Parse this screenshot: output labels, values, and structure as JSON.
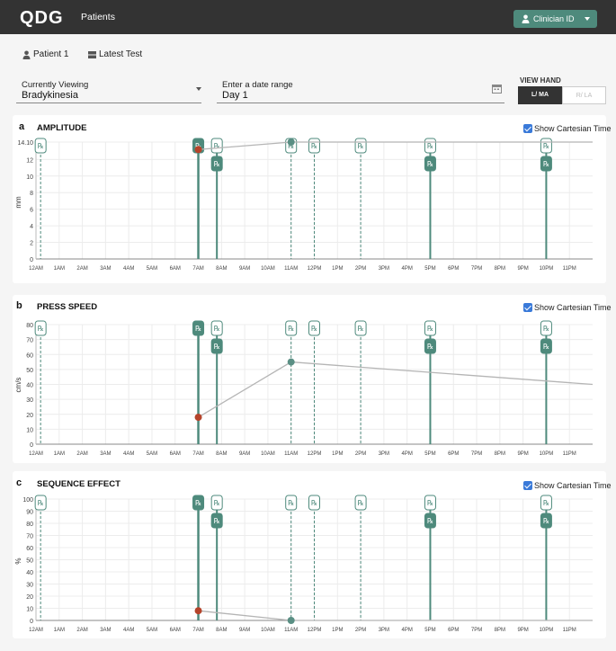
{
  "header": {
    "logo": "QDG",
    "title": "Patients",
    "clinician_label": "Clinician ID"
  },
  "subnav": {
    "patient": "Patient 1",
    "latest_test": "Latest Test"
  },
  "filters": {
    "viewing_label": "Currently Viewing",
    "viewing_value": "Bradykinesia",
    "date_label": "Enter a date range",
    "date_value": "Day 1",
    "view_hand_label": "VIEW HAND",
    "hand_left": "L/ MA",
    "hand_right": "R/ LA"
  },
  "colors": {
    "accent": "#4e8a7c",
    "dot_red": "#b5442b",
    "dot_teal": "#5a8f84",
    "line": "#b5b5b5"
  },
  "rx_symbol": "℞",
  "show_cartesian_label": "Show Cartesian Time",
  "chart_data": [
    {
      "type": "line",
      "letter": "a",
      "title": "AMPLITUDE",
      "ylabel": "mm",
      "ylim": [
        0,
        14.1
      ],
      "yticks": [
        "0",
        "2",
        "4",
        "6",
        "8",
        "10",
        "12",
        "14.10"
      ],
      "xticks": [
        "12AM",
        "1AM",
        "2AM",
        "3AM",
        "4AM",
        "5AM",
        "6AM",
        "7AM",
        "8AM",
        "9AM",
        "10AM",
        "11AM",
        "12PM",
        "1PM",
        "2PM",
        "3PM",
        "4PM",
        "5PM",
        "6PM",
        "7PM",
        "8PM",
        "9PM",
        "10PM",
        "11PM"
      ],
      "series": [
        {
          "points": [
            [
              7.0,
              13.2
            ],
            [
              11.0,
              14.1
            ],
            [
              24.0,
              14.1
            ]
          ]
        }
      ],
      "highlight_points": [
        {
          "x": 7.0,
          "y": 13.2,
          "color": "red"
        },
        {
          "x": 11.0,
          "y": 14.1,
          "color": "teal"
        }
      ],
      "medications": {
        "dashed": [
          0.2,
          11.0,
          12.0,
          14.0
        ],
        "solid_single": [
          7.8,
          17.0,
          22.0
        ],
        "solid_pair": [
          7.0
        ]
      }
    },
    {
      "type": "line",
      "letter": "b",
      "title": "PRESS SPEED",
      "ylabel": "cm/s",
      "ylim": [
        0,
        80
      ],
      "yticks": [
        "0",
        "10",
        "20",
        "30",
        "40",
        "50",
        "60",
        "70",
        "80"
      ],
      "xticks": [
        "12AM",
        "1AM",
        "2AM",
        "3AM",
        "4AM",
        "5AM",
        "6AM",
        "7AM",
        "8AM",
        "9AM",
        "10AM",
        "11AM",
        "12PM",
        "1PM",
        "2PM",
        "3PM",
        "4PM",
        "5PM",
        "6PM",
        "7PM",
        "8PM",
        "9PM",
        "10PM",
        "11PM"
      ],
      "series": [
        {
          "points": [
            [
              7.0,
              18
            ],
            [
              11.0,
              55
            ],
            [
              24.0,
              40
            ]
          ]
        }
      ],
      "highlight_points": [
        {
          "x": 7.0,
          "y": 18,
          "color": "red"
        },
        {
          "x": 11.0,
          "y": 55,
          "color": "teal"
        }
      ],
      "medications": {
        "dashed": [
          0.2,
          11.0,
          12.0,
          14.0
        ],
        "solid_single": [
          7.8,
          17.0,
          22.0
        ],
        "solid_pair": [
          7.0
        ]
      }
    },
    {
      "type": "line",
      "letter": "c",
      "title": "SEQUENCE EFFECT",
      "ylabel": "%",
      "ylim": [
        0,
        100
      ],
      "yticks": [
        "0",
        "10",
        "20",
        "30",
        "40",
        "50",
        "60",
        "70",
        "80",
        "90",
        "100"
      ],
      "xticks": [
        "12AM",
        "1AM",
        "2AM",
        "3AM",
        "4AM",
        "5AM",
        "6AM",
        "7AM",
        "8AM",
        "9AM",
        "10AM",
        "11AM",
        "12PM",
        "1PM",
        "2PM",
        "3PM",
        "4PM",
        "5PM",
        "6PM",
        "7PM",
        "8PM",
        "9PM",
        "10PM",
        "11PM"
      ],
      "series": [
        {
          "points": [
            [
              7.0,
              8
            ],
            [
              11.0,
              0
            ],
            [
              24.0,
              0
            ]
          ]
        }
      ],
      "highlight_points": [
        {
          "x": 7.0,
          "y": 8,
          "color": "red"
        },
        {
          "x": 11.0,
          "y": 0,
          "color": "teal"
        }
      ],
      "medications": {
        "dashed": [
          0.2,
          11.0,
          12.0,
          14.0
        ],
        "solid_single": [
          7.8,
          17.0,
          22.0
        ],
        "solid_pair": [
          7.0
        ]
      }
    }
  ]
}
